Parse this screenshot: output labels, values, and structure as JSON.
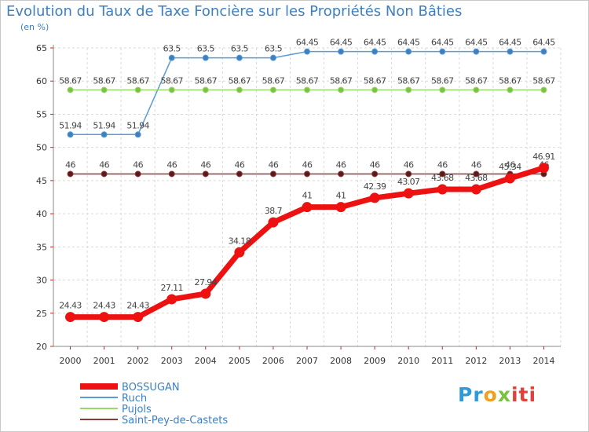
{
  "chart_data": {
    "type": "line",
    "title": "Evolution du Taux de Taxe Foncière sur les Propriétés Non Bâties",
    "unit_label": "(en %)",
    "x": [
      "2000",
      "2001",
      "2002",
      "2003",
      "2004",
      "2005",
      "2006",
      "2007",
      "2008",
      "2009",
      "2010",
      "2011",
      "2012",
      "2013",
      "2014"
    ],
    "ylim": [
      20,
      65
    ],
    "yticks": [
      20,
      25,
      30,
      35,
      40,
      45,
      50,
      55,
      60,
      65
    ],
    "grid": true,
    "legend_position": "bottom-left",
    "series": [
      {
        "name": "Ruch",
        "color": "#5b9bd5",
        "markerColor": "#3d7fbf",
        "width": 1.5,
        "markerR": 3.5,
        "values": [
          51.94,
          51.94,
          51.94,
          63.5,
          63.5,
          63.5,
          63.5,
          64.45,
          64.45,
          64.45,
          64.45,
          64.45,
          64.45,
          64.45,
          64.45
        ],
        "labels": [
          "51.94",
          "51.94",
          "51.94",
          "63.5",
          "63.5",
          "63.5",
          "63.5",
          "64.45",
          "64.45",
          "64.45",
          "64.45",
          "64.45",
          "64.45",
          "64.45",
          "64.45"
        ]
      },
      {
        "name": "Pujols",
        "color": "#9ad66a",
        "markerColor": "#7cc242",
        "width": 1.5,
        "markerR": 3.5,
        "values": [
          58.67,
          58.67,
          58.67,
          58.67,
          58.67,
          58.67,
          58.67,
          58.67,
          58.67,
          58.67,
          58.67,
          58.67,
          58.67,
          58.67,
          58.67
        ],
        "labels": [
          "58.67",
          "58.67",
          "58.67",
          "58.67",
          "58.67",
          "58.67",
          "58.67",
          "58.67",
          "58.67",
          "58.67",
          "58.67",
          "58.67",
          "58.67",
          "58.67",
          "58.67"
        ]
      },
      {
        "name": "Saint-Pey-de-Castets",
        "color": "#8b3a3a",
        "markerColor": "#5a1a1a",
        "width": 1.5,
        "markerR": 3.5,
        "values": [
          46,
          46,
          46,
          46,
          46,
          46,
          46,
          46,
          46,
          46,
          46,
          46,
          46,
          46,
          46
        ],
        "labels": [
          "46",
          "46",
          "46",
          "46",
          "46",
          "46",
          "46",
          "46",
          "46",
          "46",
          "46",
          "46",
          "46",
          "46",
          "46"
        ]
      },
      {
        "name": "BOSSUGAN",
        "color": "#ee1111",
        "markerColor": "#ee1111",
        "width": 7,
        "markerR": 6,
        "values": [
          24.43,
          24.43,
          24.43,
          27.11,
          27.94,
          34.18,
          38.7,
          41,
          41,
          42.39,
          43.07,
          43.68,
          43.68,
          45.34,
          46.91
        ],
        "labels": [
          "24.43",
          "24.43",
          "24.43",
          "27.11",
          "27.94",
          "34.18",
          "38.7",
          "41",
          "41",
          "42.39",
          "43.07",
          "43.68",
          "43.68",
          "45.34",
          "46.91"
        ]
      }
    ],
    "legend": [
      "BOSSUGAN",
      "Ruch",
      "Pujols",
      "Saint-Pey-de-Castets"
    ]
  },
  "branding": {
    "l1": "Pr",
    "l2": "o",
    "l3": "x",
    "l4": "iti"
  }
}
